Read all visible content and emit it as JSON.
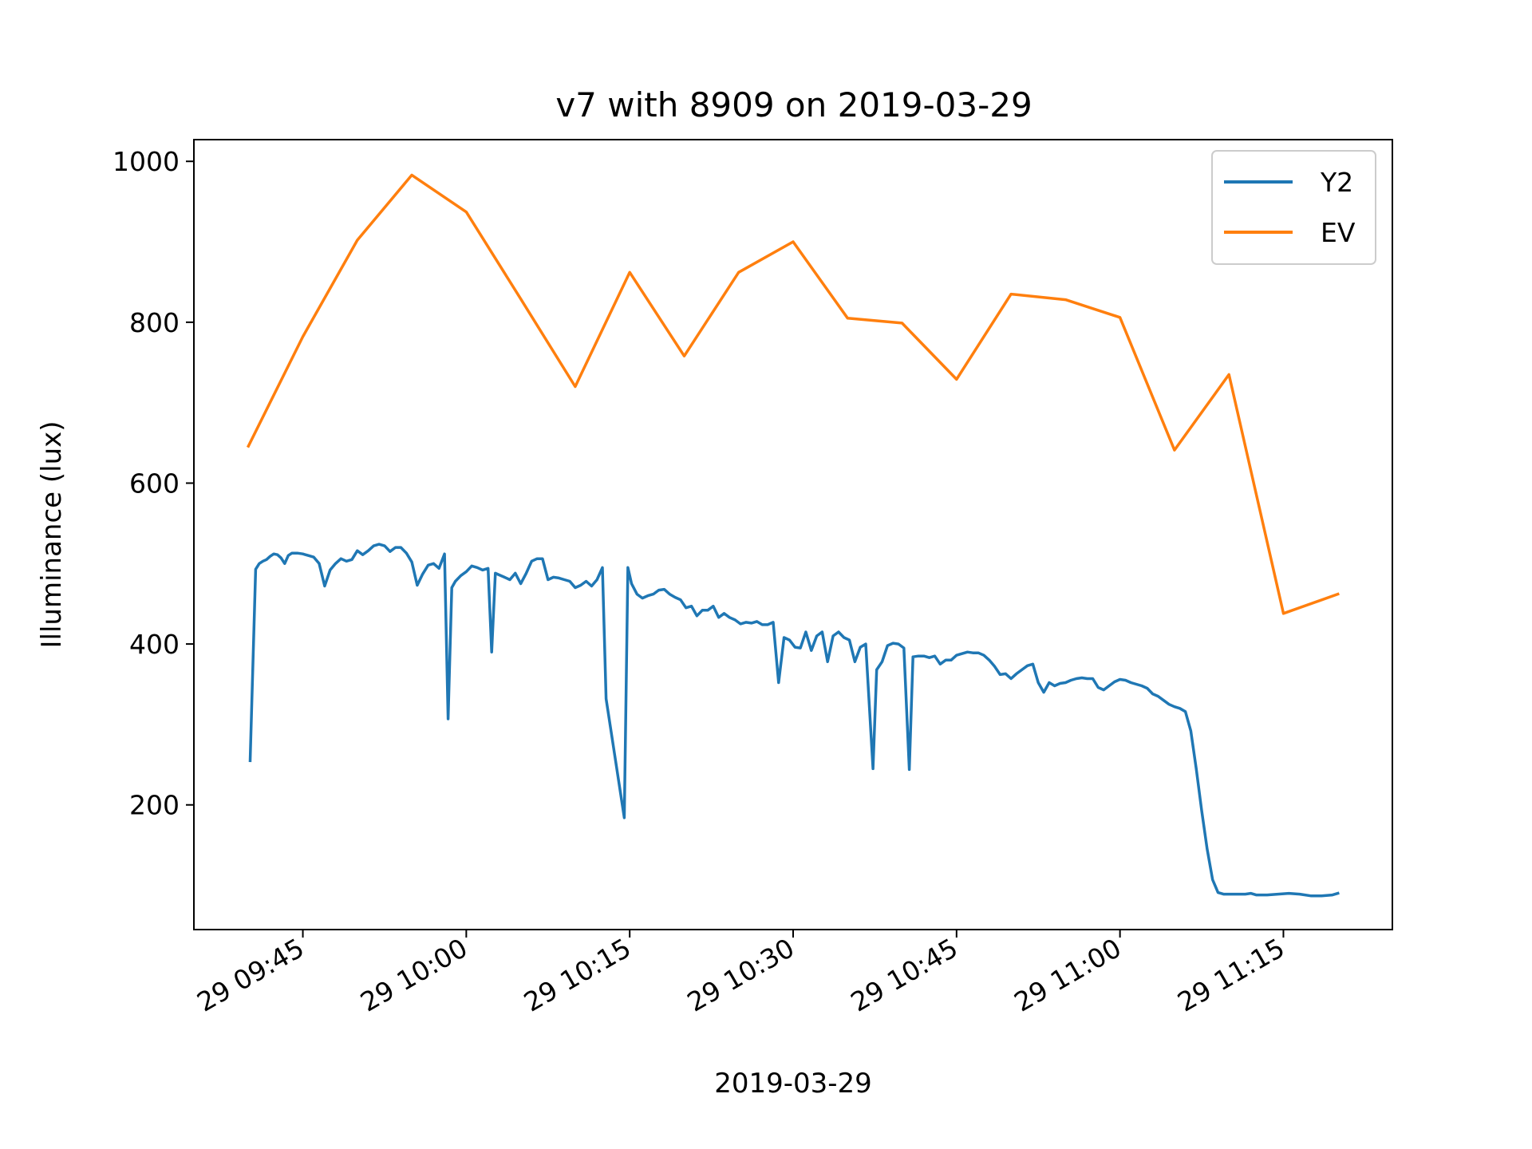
{
  "chart_data": {
    "type": "line",
    "title": "v7 with 8909 on 2019-03-29",
    "xlabel": "2019-03-29",
    "ylabel": "Illuminance (lux)",
    "x_tick_labels": [
      "29 09:45",
      "29 10:00",
      "29 10:15",
      "29 10:30",
      "29 10:45",
      "29 11:00",
      "29 11:15"
    ],
    "x_tick_times": [
      "09:45",
      "10:00",
      "10:15",
      "10:30",
      "10:45",
      "11:00",
      "11:15"
    ],
    "xlim": [
      "09:35",
      "11:25"
    ],
    "y_ticks": [
      200,
      400,
      600,
      800,
      1000
    ],
    "ylim": [
      45,
      1027
    ],
    "legend_position": "top-right",
    "series": [
      {
        "name": "Y2",
        "color": "#1f77b4",
        "points": [
          [
            "09:40:10",
            255
          ],
          [
            "09:40:40",
            493
          ],
          [
            "09:41:00",
            500
          ],
          [
            "09:41:20",
            503
          ],
          [
            "09:41:40",
            505
          ],
          [
            "09:42:00",
            509
          ],
          [
            "09:42:20",
            512
          ],
          [
            "09:42:40",
            511
          ],
          [
            "09:43:00",
            507
          ],
          [
            "09:43:20",
            500
          ],
          [
            "09:43:40",
            510
          ],
          [
            "09:44:00",
            513
          ],
          [
            "09:44:30",
            513
          ],
          [
            "09:45:00",
            512
          ],
          [
            "09:45:30",
            510
          ],
          [
            "09:46:00",
            508
          ],
          [
            "09:46:30",
            500
          ],
          [
            "09:47:00",
            472
          ],
          [
            "09:47:30",
            492
          ],
          [
            "09:48:00",
            500
          ],
          [
            "09:48:30",
            506
          ],
          [
            "09:49:00",
            503
          ],
          [
            "09:49:30",
            505
          ],
          [
            "09:50:00",
            516
          ],
          [
            "09:50:30",
            511
          ],
          [
            "09:51:00",
            516
          ],
          [
            "09:51:30",
            522
          ],
          [
            "09:52:00",
            524
          ],
          [
            "09:52:30",
            522
          ],
          [
            "09:53:00",
            515
          ],
          [
            "09:53:30",
            520
          ],
          [
            "09:54:00",
            520
          ],
          [
            "09:54:30",
            513
          ],
          [
            "09:55:00",
            502
          ],
          [
            "09:55:30",
            473
          ],
          [
            "09:56:00",
            487
          ],
          [
            "09:56:30",
            498
          ],
          [
            "09:57:00",
            500
          ],
          [
            "09:57:30",
            494
          ],
          [
            "09:58:00",
            512
          ],
          [
            "09:58:20",
            307
          ],
          [
            "09:58:40",
            470
          ],
          [
            "09:59:00",
            478
          ],
          [
            "09:59:30",
            485
          ],
          [
            "10:00:00",
            490
          ],
          [
            "10:00:30",
            497
          ],
          [
            "10:01:00",
            495
          ],
          [
            "10:01:30",
            492
          ],
          [
            "10:02:00",
            494
          ],
          [
            "10:02:20",
            390
          ],
          [
            "10:02:40",
            488
          ],
          [
            "10:03:00",
            486
          ],
          [
            "10:03:30",
            483
          ],
          [
            "10:04:00",
            480
          ],
          [
            "10:04:30",
            488
          ],
          [
            "10:05:00",
            475
          ],
          [
            "10:05:30",
            488
          ],
          [
            "10:06:00",
            503
          ],
          [
            "10:06:30",
            506
          ],
          [
            "10:07:00",
            506
          ],
          [
            "10:07:30",
            480
          ],
          [
            "10:08:00",
            483
          ],
          [
            "10:08:30",
            482
          ],
          [
            "10:09:00",
            480
          ],
          [
            "10:09:30",
            478
          ],
          [
            "10:10:00",
            470
          ],
          [
            "10:10:30",
            473
          ],
          [
            "10:11:00",
            478
          ],
          [
            "10:11:30",
            472
          ],
          [
            "10:12:00",
            480
          ],
          [
            "10:12:30",
            495
          ],
          [
            "10:12:50",
            332
          ],
          [
            "10:14:30",
            184
          ],
          [
            "10:14:50",
            495
          ],
          [
            "10:15:10",
            475
          ],
          [
            "10:15:40",
            462
          ],
          [
            "10:16:10",
            457
          ],
          [
            "10:16:40",
            460
          ],
          [
            "10:17:10",
            462
          ],
          [
            "10:17:40",
            467
          ],
          [
            "10:18:10",
            468
          ],
          [
            "10:18:40",
            462
          ],
          [
            "10:19:10",
            458
          ],
          [
            "10:19:40",
            455
          ],
          [
            "10:20:10",
            445
          ],
          [
            "10:20:40",
            447
          ],
          [
            "10:21:10",
            435
          ],
          [
            "10:21:40",
            442
          ],
          [
            "10:22:10",
            442
          ],
          [
            "10:22:40",
            447
          ],
          [
            "10:23:10",
            433
          ],
          [
            "10:23:40",
            438
          ],
          [
            "10:24:10",
            433
          ],
          [
            "10:24:40",
            430
          ],
          [
            "10:25:10",
            425
          ],
          [
            "10:25:40",
            427
          ],
          [
            "10:26:10",
            426
          ],
          [
            "10:26:40",
            428
          ],
          [
            "10:27:10",
            424
          ],
          [
            "10:27:40",
            424
          ],
          [
            "10:28:10",
            427
          ],
          [
            "10:28:40",
            352
          ],
          [
            "10:29:10",
            408
          ],
          [
            "10:29:40",
            405
          ],
          [
            "10:30:10",
            396
          ],
          [
            "10:30:40",
            395
          ],
          [
            "10:31:10",
            415
          ],
          [
            "10:31:40",
            392
          ],
          [
            "10:32:10",
            410
          ],
          [
            "10:32:40",
            415
          ],
          [
            "10:33:10",
            378
          ],
          [
            "10:33:40",
            410
          ],
          [
            "10:34:10",
            415
          ],
          [
            "10:34:40",
            408
          ],
          [
            "10:35:10",
            405
          ],
          [
            "10:35:40",
            378
          ],
          [
            "10:36:10",
            396
          ],
          [
            "10:36:40",
            400
          ],
          [
            "10:37:20",
            245
          ],
          [
            "10:37:40",
            368
          ],
          [
            "10:38:10",
            378
          ],
          [
            "10:38:40",
            398
          ],
          [
            "10:39:10",
            401
          ],
          [
            "10:39:40",
            400
          ],
          [
            "10:40:10",
            395
          ],
          [
            "10:40:40",
            244
          ],
          [
            "10:41:00",
            384
          ],
          [
            "10:41:30",
            385
          ],
          [
            "10:42:00",
            385
          ],
          [
            "10:42:30",
            383
          ],
          [
            "10:43:00",
            385
          ],
          [
            "10:43:30",
            375
          ],
          [
            "10:44:00",
            380
          ],
          [
            "10:44:30",
            380
          ],
          [
            "10:45:00",
            386
          ],
          [
            "10:45:30",
            388
          ],
          [
            "10:46:00",
            390
          ],
          [
            "10:46:30",
            389
          ],
          [
            "10:47:00",
            389
          ],
          [
            "10:47:30",
            386
          ],
          [
            "10:48:00",
            380
          ],
          [
            "10:48:30",
            372
          ],
          [
            "10:49:00",
            362
          ],
          [
            "10:49:30",
            363
          ],
          [
            "10:50:00",
            357
          ],
          [
            "10:50:30",
            363
          ],
          [
            "10:51:00",
            368
          ],
          [
            "10:51:30",
            373
          ],
          [
            "10:52:00",
            375
          ],
          [
            "10:52:30",
            352
          ],
          [
            "10:53:00",
            340
          ],
          [
            "10:53:30",
            352
          ],
          [
            "10:54:00",
            348
          ],
          [
            "10:54:30",
            351
          ],
          [
            "10:55:00",
            352
          ],
          [
            "10:55:30",
            355
          ],
          [
            "10:56:00",
            357
          ],
          [
            "10:56:30",
            358
          ],
          [
            "10:57:00",
            357
          ],
          [
            "10:57:30",
            357
          ],
          [
            "10:58:00",
            346
          ],
          [
            "10:58:30",
            343
          ],
          [
            "10:59:00",
            348
          ],
          [
            "10:59:30",
            353
          ],
          [
            "11:00:00",
            356
          ],
          [
            "11:00:30",
            355
          ],
          [
            "11:01:00",
            352
          ],
          [
            "11:01:30",
            350
          ],
          [
            "11:02:00",
            348
          ],
          [
            "11:02:30",
            345
          ],
          [
            "11:03:00",
            338
          ],
          [
            "11:03:30",
            335
          ],
          [
            "11:04:00",
            330
          ],
          [
            "11:04:30",
            325
          ],
          [
            "11:05:00",
            322
          ],
          [
            "11:05:30",
            320
          ],
          [
            "11:06:00",
            316
          ],
          [
            "11:06:30",
            292
          ],
          [
            "11:07:00",
            245
          ],
          [
            "11:07:30",
            193
          ],
          [
            "11:08:00",
            145
          ],
          [
            "11:08:30",
            107
          ],
          [
            "11:09:00",
            91
          ],
          [
            "11:09:30",
            89
          ],
          [
            "11:10:30",
            89
          ],
          [
            "11:11:30",
            89
          ],
          [
            "11:12:00",
            90
          ],
          [
            "11:12:30",
            88
          ],
          [
            "11:13:30",
            88
          ],
          [
            "11:14:30",
            89
          ],
          [
            "11:15:30",
            90
          ],
          [
            "11:16:30",
            89
          ],
          [
            "11:17:30",
            87
          ],
          [
            "11:18:30",
            87
          ],
          [
            "11:19:30",
            88
          ],
          [
            "11:20:00",
            90
          ]
        ]
      },
      {
        "name": "EV",
        "color": "#ff7f0e",
        "points": [
          [
            "09:40",
            646
          ],
          [
            "09:45",
            782
          ],
          [
            "09:50",
            902
          ],
          [
            "09:55",
            983
          ],
          [
            "10:00",
            937
          ],
          [
            "10:05",
            829
          ],
          [
            "10:10",
            720
          ],
          [
            "10:15",
            862
          ],
          [
            "10:20",
            758
          ],
          [
            "10:25",
            862
          ],
          [
            "10:30",
            900
          ],
          [
            "10:35",
            805
          ],
          [
            "10:40",
            799
          ],
          [
            "10:45",
            729
          ],
          [
            "10:50",
            835
          ],
          [
            "10:55",
            828
          ],
          [
            "11:00",
            806
          ],
          [
            "11:05",
            641
          ],
          [
            "11:10",
            735
          ],
          [
            "11:15",
            438
          ],
          [
            "11:20",
            462
          ]
        ]
      }
    ]
  }
}
